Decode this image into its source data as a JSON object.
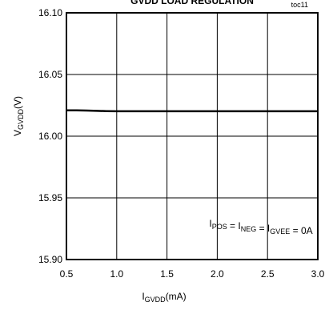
{
  "chart_data": {
    "type": "line",
    "title": "GVDD LOAD REGULATION",
    "tag": "toc11",
    "xlabel": {
      "main": "I",
      "sub": "GVDD",
      "unit": "(mA)"
    },
    "ylabel": {
      "main": "V",
      "sub": "GVDD",
      "unit": "(V)"
    },
    "xlim": [
      0.5,
      3.0
    ],
    "ylim": [
      15.9,
      16.1
    ],
    "xticks": [
      "0.5",
      "1.0",
      "1.5",
      "2.0",
      "2.5",
      "3.0"
    ],
    "xtick_values": [
      0.5,
      1.0,
      1.5,
      2.0,
      2.5,
      3.0
    ],
    "yticks": [
      "16.10",
      "16.05",
      "16.00",
      "15.95",
      "15.90"
    ],
    "ytick_values": [
      16.1,
      16.05,
      16.0,
      15.95,
      15.9
    ],
    "grid": true,
    "annotation": {
      "parts": [
        {
          "text": "I",
          "sub": "POS"
        },
        {
          "text": " = I",
          "sub": "NEG"
        },
        {
          "text": " = I",
          "sub": "GVEE"
        },
        {
          "text": " = 0A",
          "sub": ""
        }
      ]
    },
    "series": [
      {
        "x": [
          0.5,
          0.6,
          0.7,
          0.8,
          0.9,
          1.0,
          1.5,
          2.0,
          2.5,
          3.0
        ],
        "y": [
          16.021,
          16.021,
          16.0208,
          16.0205,
          16.0203,
          16.0202,
          16.0202,
          16.0202,
          16.0202,
          16.0202
        ]
      }
    ]
  }
}
